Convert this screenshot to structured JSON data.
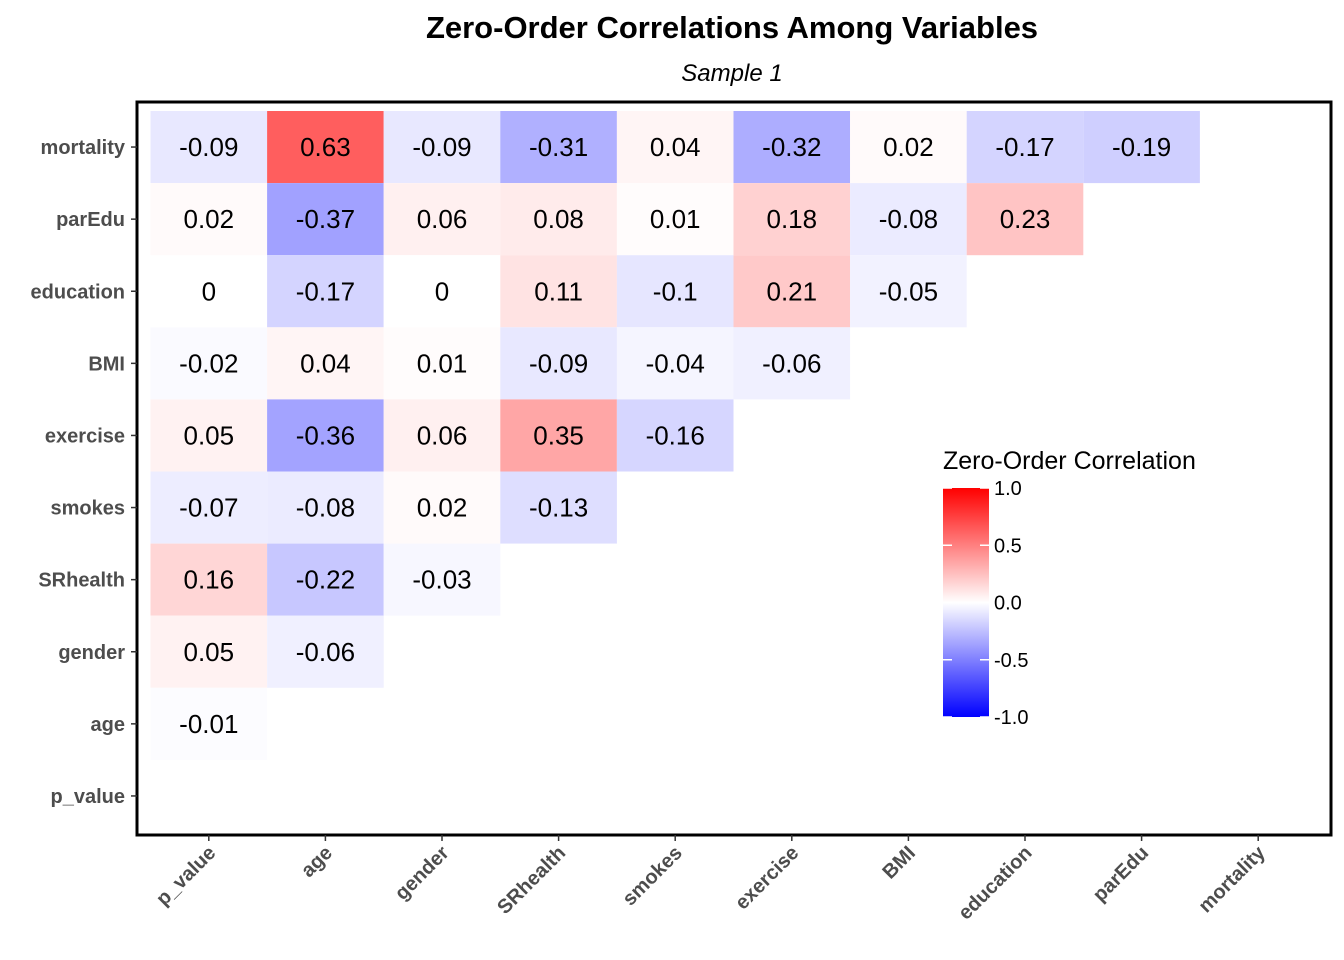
{
  "chart_data": {
    "type": "heatmap",
    "title": "Zero-Order Correlations Among Variables",
    "subtitle": "Sample 1",
    "x_categories": [
      "p_value",
      "age",
      "gender",
      "SRhealth",
      "smokes",
      "exercise",
      "BMI",
      "education",
      "parEdu",
      "mortality"
    ],
    "y_categories": [
      "p_value",
      "age",
      "gender",
      "SRhealth",
      "smokes",
      "exercise",
      "BMI",
      "education",
      "parEdu",
      "mortality"
    ],
    "cells": [
      {
        "row": "mortality",
        "col": "p_value",
        "value": -0.09,
        "label": "-0.09"
      },
      {
        "row": "mortality",
        "col": "age",
        "value": 0.63,
        "label": "0.63"
      },
      {
        "row": "mortality",
        "col": "gender",
        "value": -0.09,
        "label": "-0.09"
      },
      {
        "row": "mortality",
        "col": "SRhealth",
        "value": -0.31,
        "label": "-0.31"
      },
      {
        "row": "mortality",
        "col": "smokes",
        "value": 0.04,
        "label": "0.04"
      },
      {
        "row": "mortality",
        "col": "exercise",
        "value": -0.32,
        "label": "-0.32"
      },
      {
        "row": "mortality",
        "col": "BMI",
        "value": 0.02,
        "label": "0.02"
      },
      {
        "row": "mortality",
        "col": "education",
        "value": -0.17,
        "label": "-0.17"
      },
      {
        "row": "mortality",
        "col": "parEdu",
        "value": -0.19,
        "label": "-0.19"
      },
      {
        "row": "parEdu",
        "col": "p_value",
        "value": 0.02,
        "label": "0.02"
      },
      {
        "row": "parEdu",
        "col": "age",
        "value": -0.37,
        "label": "-0.37"
      },
      {
        "row": "parEdu",
        "col": "gender",
        "value": 0.06,
        "label": "0.06"
      },
      {
        "row": "parEdu",
        "col": "SRhealth",
        "value": 0.08,
        "label": "0.08"
      },
      {
        "row": "parEdu",
        "col": "smokes",
        "value": 0.01,
        "label": "0.01"
      },
      {
        "row": "parEdu",
        "col": "exercise",
        "value": 0.18,
        "label": "0.18"
      },
      {
        "row": "parEdu",
        "col": "BMI",
        "value": -0.08,
        "label": "-0.08"
      },
      {
        "row": "parEdu",
        "col": "education",
        "value": 0.23,
        "label": "0.23"
      },
      {
        "row": "education",
        "col": "p_value",
        "value": 0,
        "label": "0"
      },
      {
        "row": "education",
        "col": "age",
        "value": -0.17,
        "label": "-0.17"
      },
      {
        "row": "education",
        "col": "gender",
        "value": 0,
        "label": "0"
      },
      {
        "row": "education",
        "col": "SRhealth",
        "value": 0.11,
        "label": "0.11"
      },
      {
        "row": "education",
        "col": "smokes",
        "value": -0.1,
        "label": "-0.1"
      },
      {
        "row": "education",
        "col": "exercise",
        "value": 0.21,
        "label": "0.21"
      },
      {
        "row": "education",
        "col": "BMI",
        "value": -0.05,
        "label": "-0.05"
      },
      {
        "row": "BMI",
        "col": "p_value",
        "value": -0.02,
        "label": "-0.02"
      },
      {
        "row": "BMI",
        "col": "age",
        "value": 0.04,
        "label": "0.04"
      },
      {
        "row": "BMI",
        "col": "gender",
        "value": 0.01,
        "label": "0.01"
      },
      {
        "row": "BMI",
        "col": "SRhealth",
        "value": -0.09,
        "label": "-0.09"
      },
      {
        "row": "BMI",
        "col": "smokes",
        "value": -0.04,
        "label": "-0.04"
      },
      {
        "row": "BMI",
        "col": "exercise",
        "value": -0.06,
        "label": "-0.06"
      },
      {
        "row": "exercise",
        "col": "p_value",
        "value": 0.05,
        "label": "0.05"
      },
      {
        "row": "exercise",
        "col": "age",
        "value": -0.36,
        "label": "-0.36"
      },
      {
        "row": "exercise",
        "col": "gender",
        "value": 0.06,
        "label": "0.06"
      },
      {
        "row": "exercise",
        "col": "SRhealth",
        "value": 0.35,
        "label": "0.35"
      },
      {
        "row": "exercise",
        "col": "smokes",
        "value": -0.16,
        "label": "-0.16"
      },
      {
        "row": "smokes",
        "col": "p_value",
        "value": -0.07,
        "label": "-0.07"
      },
      {
        "row": "smokes",
        "col": "age",
        "value": -0.08,
        "label": "-0.08"
      },
      {
        "row": "smokes",
        "col": "gender",
        "value": 0.02,
        "label": "0.02"
      },
      {
        "row": "smokes",
        "col": "SRhealth",
        "value": -0.13,
        "label": "-0.13"
      },
      {
        "row": "SRhealth",
        "col": "p_value",
        "value": 0.16,
        "label": "0.16"
      },
      {
        "row": "SRhealth",
        "col": "age",
        "value": -0.22,
        "label": "-0.22"
      },
      {
        "row": "SRhealth",
        "col": "gender",
        "value": -0.03,
        "label": "-0.03"
      },
      {
        "row": "gender",
        "col": "p_value",
        "value": 0.05,
        "label": "0.05"
      },
      {
        "row": "gender",
        "col": "age",
        "value": -0.06,
        "label": "-0.06"
      },
      {
        "row": "age",
        "col": "p_value",
        "value": -0.01,
        "label": "-0.01"
      }
    ],
    "legend": {
      "title": "Zero-Order Correlation",
      "placement": "right-middle",
      "range": [
        -1,
        1
      ],
      "ticks": [
        1.0,
        0.5,
        0.0,
        -0.5,
        -1.0
      ],
      "tick_labels": [
        "1.0",
        "0.5",
        "0.0",
        "-0.5",
        "-1.0"
      ]
    },
    "colors": {
      "low": "#0000ff",
      "mid": "#ffffff",
      "high": "#ff0000"
    },
    "grid": false
  }
}
